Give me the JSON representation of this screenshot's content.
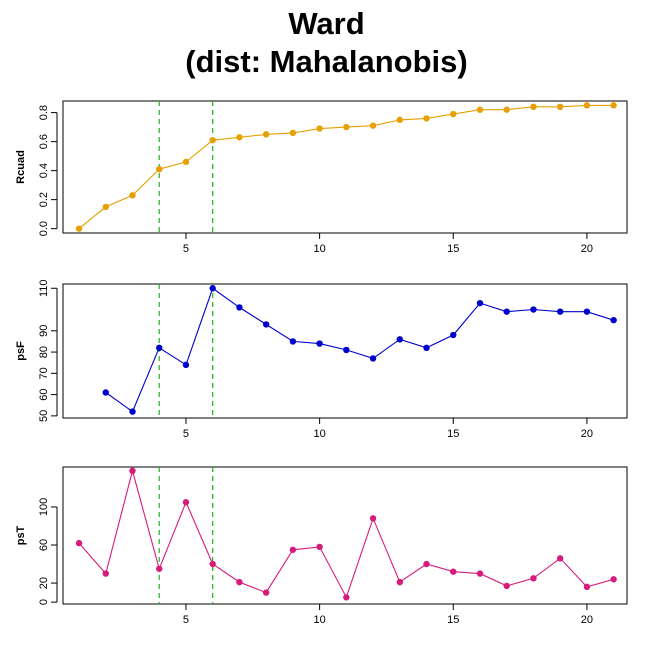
{
  "title_line1": "Ward",
  "title_line2": "(dist: Mahalanobis)",
  "chart_data": [
    {
      "type": "line",
      "ylabel": "Rcuad",
      "color": "#E6A000",
      "x": [
        1,
        2,
        3,
        4,
        5,
        6,
        7,
        8,
        9,
        10,
        11,
        12,
        13,
        14,
        15,
        16,
        17,
        18,
        19,
        20,
        21
      ],
      "values": [
        0.0,
        0.15,
        0.23,
        0.41,
        0.46,
        0.61,
        0.63,
        0.65,
        0.66,
        0.69,
        0.7,
        0.71,
        0.75,
        0.76,
        0.79,
        0.82,
        0.82,
        0.84,
        0.84,
        0.85,
        0.85
      ],
      "xlim": [
        0.4,
        21.5
      ],
      "ylim": [
        -0.03,
        0.88
      ],
      "xticks": [
        5,
        10,
        15,
        20
      ],
      "yticks": [
        0.0,
        0.2,
        0.4,
        0.6,
        0.8
      ],
      "ytick_labels": [
        "0.0",
        "0.2",
        "0.4",
        "0.6",
        "0.8"
      ],
      "vlines": [
        4,
        6
      ],
      "vline_color": "#22B022"
    },
    {
      "type": "line",
      "ylabel": "psF",
      "color": "#0000CC",
      "x": [
        2,
        3,
        4,
        5,
        6,
        7,
        8,
        9,
        10,
        11,
        12,
        13,
        14,
        15,
        16,
        17,
        18,
        19,
        20,
        21
      ],
      "values": [
        61,
        52,
        82,
        74,
        110,
        101,
        93,
        85,
        84,
        81,
        77,
        86,
        82,
        88,
        103,
        99,
        100,
        99,
        99,
        95
      ],
      "xlim": [
        0.4,
        21.5
      ],
      "ylim": [
        49,
        112
      ],
      "xticks": [
        5,
        10,
        15,
        20
      ],
      "yticks": [
        50,
        60,
        70,
        80,
        90,
        110
      ],
      "ytick_labels": [
        "50",
        "60",
        "70",
        "80",
        "90",
        "110"
      ],
      "vlines": [
        4,
        6
      ],
      "vline_color": "#22B022"
    },
    {
      "type": "line",
      "ylabel": "psT",
      "color": "#D81B7A",
      "x": [
        1,
        2,
        3,
        4,
        5,
        6,
        7,
        8,
        9,
        10,
        11,
        12,
        13,
        14,
        15,
        16,
        17,
        18,
        19,
        20,
        21
      ],
      "values": [
        62,
        30,
        138,
        35,
        105,
        40,
        21,
        10,
        55,
        58,
        5,
        88,
        21,
        40,
        32,
        30,
        17,
        25,
        46,
        16,
        24
      ],
      "xlim": [
        0.4,
        21.5
      ],
      "ylim": [
        -2,
        142
      ],
      "xticks": [
        5,
        10,
        15,
        20
      ],
      "yticks": [
        0,
        20,
        60,
        100
      ],
      "ytick_labels": [
        "0",
        "20",
        "60",
        "100"
      ],
      "vlines": [
        4,
        6
      ],
      "vline_color": "#22B022"
    }
  ]
}
